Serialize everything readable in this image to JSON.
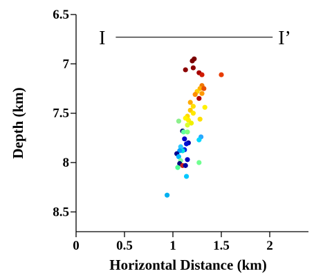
{
  "chart_data": {
    "type": "scatter",
    "xlabel": "Horizontal Distance (km)",
    "ylabel": "Depth (km)",
    "xlim": [
      0,
      2.4
    ],
    "ylim": [
      6.5,
      8.7
    ],
    "y_inverted": true,
    "x_ticks": [
      {
        "value": 0,
        "label": "0"
      },
      {
        "value": 0.5,
        "label": "0.5"
      },
      {
        "value": 1,
        "label": "1"
      },
      {
        "value": 1.5,
        "label": "1.5"
      },
      {
        "value": 2,
        "label": "2"
      }
    ],
    "y_ticks": [
      {
        "value": 6.5,
        "label": "6.5"
      },
      {
        "value": 7,
        "label": "7"
      },
      {
        "value": 7.5,
        "label": "7.5"
      },
      {
        "value": 8,
        "label": "8"
      },
      {
        "value": 8.5,
        "label": "8.5"
      }
    ],
    "profile": {
      "start_label": "I",
      "end_label": "I’",
      "depth": 6.73,
      "x_start": 0.41,
      "x_end": 2.03
    },
    "grid": false,
    "points": [
      {
        "x": 1.22,
        "y": 6.95,
        "color": "#7a0000"
      },
      {
        "x": 1.2,
        "y": 6.97,
        "color": "#7a0000"
      },
      {
        "x": 1.21,
        "y": 7.04,
        "color": "#8b0000"
      },
      {
        "x": 1.13,
        "y": 7.06,
        "color": "#8b0000"
      },
      {
        "x": 1.27,
        "y": 7.09,
        "color": "#a50000"
      },
      {
        "x": 1.3,
        "y": 7.11,
        "color": "#d01a00"
      },
      {
        "x": 1.5,
        "y": 7.11,
        "color": "#e83c00"
      },
      {
        "x": 1.3,
        "y": 7.22,
        "color": "#f07800"
      },
      {
        "x": 1.28,
        "y": 7.25,
        "color": "#ffb000"
      },
      {
        "x": 1.32,
        "y": 7.25,
        "color": "#e85000"
      },
      {
        "x": 1.25,
        "y": 7.28,
        "color": "#ffd000"
      },
      {
        "x": 1.3,
        "y": 7.3,
        "color": "#ff9800"
      },
      {
        "x": 1.23,
        "y": 7.31,
        "color": "#ff8c00"
      },
      {
        "x": 1.27,
        "y": 7.35,
        "color": "#b00000"
      },
      {
        "x": 1.18,
        "y": 7.39,
        "color": "#ffaa00"
      },
      {
        "x": 1.21,
        "y": 7.43,
        "color": "#ffe000"
      },
      {
        "x": 1.33,
        "y": 7.44,
        "color": "#fff000"
      },
      {
        "x": 1.18,
        "y": 7.47,
        "color": "#ffc800"
      },
      {
        "x": 1.21,
        "y": 7.5,
        "color": "#ffe800"
      },
      {
        "x": 1.15,
        "y": 7.53,
        "color": "#ffd800"
      },
      {
        "x": 1.13,
        "y": 7.55,
        "color": "#fff400"
      },
      {
        "x": 1.28,
        "y": 7.56,
        "color": "#ffe000"
      },
      {
        "x": 1.16,
        "y": 7.57,
        "color": "#fff000"
      },
      {
        "x": 1.06,
        "y": 7.58,
        "color": "#8cf08c"
      },
      {
        "x": 1.19,
        "y": 7.6,
        "color": "#f0f000"
      },
      {
        "x": 1.15,
        "y": 7.62,
        "color": "#d8ff30"
      },
      {
        "x": 1.1,
        "y": 7.68,
        "color": "#001070"
      },
      {
        "x": 1.11,
        "y": 7.69,
        "color": "#60ffa0"
      },
      {
        "x": 1.15,
        "y": 7.69,
        "color": "#80ff80"
      },
      {
        "x": 1.29,
        "y": 7.74,
        "color": "#2aa8ff"
      },
      {
        "x": 1.27,
        "y": 7.77,
        "color": "#00d8ff"
      },
      {
        "x": 1.12,
        "y": 7.76,
        "color": "#0000c8"
      },
      {
        "x": 1.16,
        "y": 7.8,
        "color": "#0000a8"
      },
      {
        "x": 1.14,
        "y": 7.81,
        "color": "#0010d0"
      },
      {
        "x": 1.08,
        "y": 7.84,
        "color": "#30c8ff"
      },
      {
        "x": 1.12,
        "y": 7.87,
        "color": "#0028e0"
      },
      {
        "x": 1.1,
        "y": 7.88,
        "color": "#00e0e0"
      },
      {
        "x": 1.07,
        "y": 7.88,
        "color": "#00a0ff"
      },
      {
        "x": 1.04,
        "y": 7.91,
        "color": "#000090"
      },
      {
        "x": 1.06,
        "y": 7.94,
        "color": "#00b8ff"
      },
      {
        "x": 1.15,
        "y": 7.97,
        "color": "#0000c0"
      },
      {
        "x": 1.08,
        "y": 7.98,
        "color": "#80ffa0"
      },
      {
        "x": 1.27,
        "y": 8.0,
        "color": "#70ff90"
      },
      {
        "x": 1.07,
        "y": 8.01,
        "color": "#000080"
      },
      {
        "x": 1.1,
        "y": 8.03,
        "color": "#c82020"
      },
      {
        "x": 1.05,
        "y": 8.05,
        "color": "#50ff90"
      },
      {
        "x": 1.13,
        "y": 8.03,
        "color": "#0000a0"
      },
      {
        "x": 1.14,
        "y": 8.14,
        "color": "#00c8ff"
      },
      {
        "x": 0.94,
        "y": 8.33,
        "color": "#00b0f0"
      }
    ]
  }
}
